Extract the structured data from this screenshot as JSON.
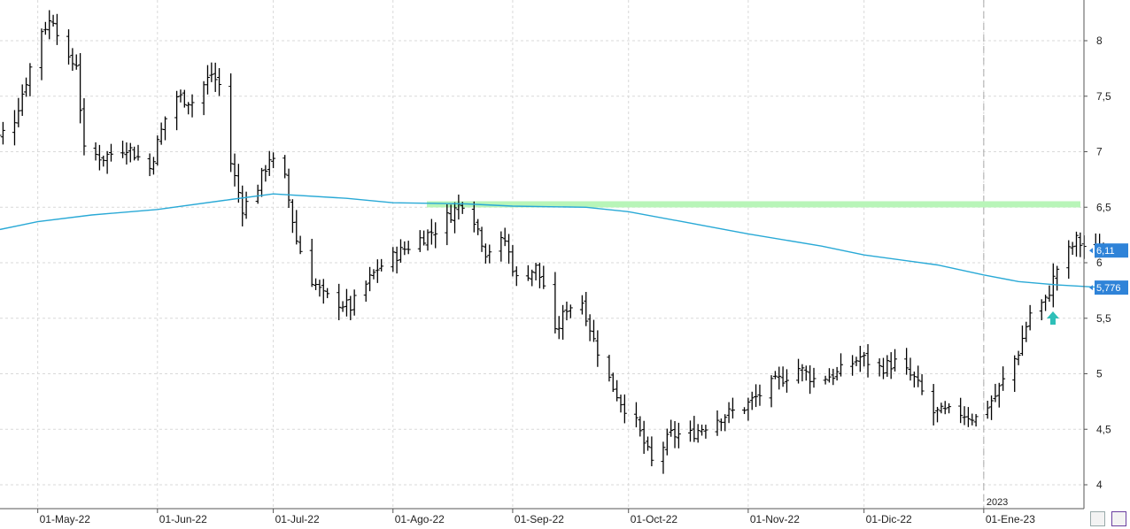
{
  "chart_data": {
    "type": "ohlc",
    "title": "",
    "xlabel": "",
    "ylabel": "",
    "ylim": [
      3.8,
      8.4
    ],
    "y_ticks": [
      "4",
      "4,5",
      "5",
      "5,5",
      "6",
      "6,5",
      "7",
      "7,5",
      "8"
    ],
    "y_tick_values": [
      4,
      4.5,
      5,
      5.5,
      6,
      6.5,
      7,
      7.5,
      8
    ],
    "x_month_labels": [
      "01-May-22",
      "01-Jun-22",
      "01-Jul-22",
      "01-Ago-22",
      "01-Sep-22",
      "01-Oct-22",
      "01-Nov-22",
      "01-Dic-22",
      "01-Ene-23"
    ],
    "year_marker": "2023",
    "grid": true,
    "last_price_label": "6,11",
    "moving_average_label": "5,776",
    "resistance_level": 6.53,
    "colors": {
      "bars": "#000000",
      "moving_average": "#29a9d6",
      "resistance_band": "#b8f5b8",
      "price_tag": "#2f83d8",
      "arrow": "#2ebfb8",
      "grid": "#d9d9d9"
    },
    "anchors": [
      [
        "2022-04-18",
        7.0
      ],
      [
        "2022-04-25",
        7.3
      ],
      [
        "2022-05-02",
        8.1
      ],
      [
        "2022-05-05",
        8.2
      ],
      [
        "2022-05-09",
        7.8
      ],
      [
        "2022-05-11",
        7.8
      ],
      [
        "2022-05-13",
        7.0
      ],
      [
        "2022-05-18",
        6.95
      ],
      [
        "2022-05-24",
        7.05
      ],
      [
        "2022-05-30",
        6.85
      ],
      [
        "2022-06-03",
        7.3
      ],
      [
        "2022-06-06",
        7.5
      ],
      [
        "2022-06-10",
        7.45
      ],
      [
        "2022-06-15",
        7.7
      ],
      [
        "2022-06-17",
        7.6
      ],
      [
        "2022-06-20",
        6.9
      ],
      [
        "2022-06-23",
        6.5
      ],
      [
        "2022-06-26",
        6.6
      ],
      [
        "2022-06-30",
        6.95
      ],
      [
        "2022-07-04",
        6.75
      ],
      [
        "2022-07-07",
        6.2
      ],
      [
        "2022-07-11",
        5.85
      ],
      [
        "2022-07-14",
        5.7
      ],
      [
        "2022-07-21",
        5.6
      ],
      [
        "2022-07-28",
        5.95
      ],
      [
        "2022-08-01",
        6.05
      ],
      [
        "2022-08-05",
        6.15
      ],
      [
        "2022-08-12",
        6.3
      ],
      [
        "2022-08-19",
        6.55
      ],
      [
        "2022-08-22",
        6.4
      ],
      [
        "2022-08-25",
        6.1
      ],
      [
        "2022-08-30",
        6.2
      ],
      [
        "2022-09-02",
        5.85
      ],
      [
        "2022-09-07",
        5.95
      ],
      [
        "2022-09-09",
        5.8
      ],
      [
        "2022-09-12",
        5.35
      ],
      [
        "2022-09-15",
        5.6
      ],
      [
        "2022-09-19",
        5.65
      ],
      [
        "2022-09-22",
        5.3
      ],
      [
        "2022-09-26",
        4.95
      ],
      [
        "2022-09-29",
        4.75
      ],
      [
        "2022-10-03",
        4.55
      ],
      [
        "2022-10-07",
        4.2
      ],
      [
        "2022-10-12",
        4.45
      ],
      [
        "2022-10-17",
        4.45
      ],
      [
        "2022-10-24",
        4.6
      ],
      [
        "2022-10-31",
        4.7
      ],
      [
        "2022-11-07",
        4.9
      ],
      [
        "2022-11-14",
        5.05
      ],
      [
        "2022-11-18",
        4.95
      ],
      [
        "2022-11-24",
        5.0
      ],
      [
        "2022-11-30",
        5.15
      ],
      [
        "2022-12-05",
        5.05
      ],
      [
        "2022-12-09",
        5.1
      ],
      [
        "2022-12-14",
        4.95
      ],
      [
        "2022-12-19",
        4.65
      ],
      [
        "2022-12-26",
        4.65
      ],
      [
        "2022-12-30",
        4.6
      ],
      [
        "2023-01-04",
        4.8
      ],
      [
        "2023-01-10",
        5.2
      ],
      [
        "2023-01-13",
        5.55
      ],
      [
        "2023-01-17",
        5.65
      ],
      [
        "2023-01-20",
        5.95
      ],
      [
        "2023-01-25",
        6.2
      ],
      [
        "2023-01-29",
        6.1
      ],
      [
        "2023-02-01",
        6.1
      ]
    ],
    "moving_average": [
      [
        "2022-04-18",
        6.3
      ],
      [
        "2022-05-01",
        6.37
      ],
      [
        "2022-05-15",
        6.43
      ],
      [
        "2022-06-01",
        6.48
      ],
      [
        "2022-06-20",
        6.57
      ],
      [
        "2022-07-01",
        6.62
      ],
      [
        "2022-07-20",
        6.58
      ],
      [
        "2022-08-01",
        6.54
      ],
      [
        "2022-08-20",
        6.53
      ],
      [
        "2022-09-01",
        6.51
      ],
      [
        "2022-09-20",
        6.5
      ],
      [
        "2022-10-01",
        6.46
      ],
      [
        "2022-10-15",
        6.37
      ],
      [
        "2022-11-01",
        6.26
      ],
      [
        "2022-11-20",
        6.15
      ],
      [
        "2022-12-01",
        6.07
      ],
      [
        "2022-12-20",
        5.98
      ],
      [
        "2023-01-01",
        5.89
      ],
      [
        "2023-01-10",
        5.83
      ],
      [
        "2023-01-20",
        5.8
      ],
      [
        "2023-02-01",
        5.776
      ]
    ]
  }
}
